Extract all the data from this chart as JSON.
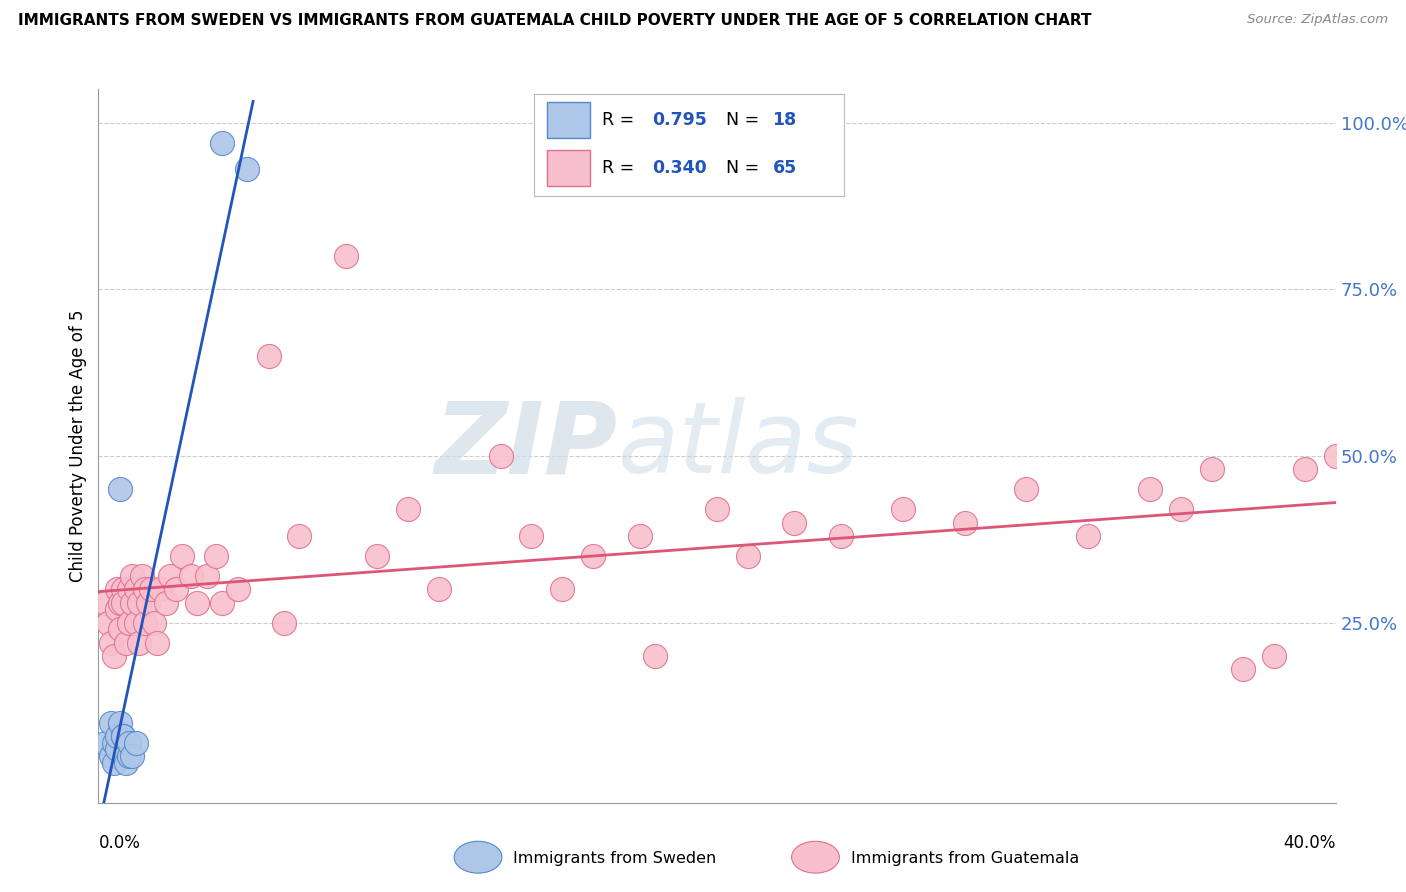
{
  "title": "IMMIGRANTS FROM SWEDEN VS IMMIGRANTS FROM GUATEMALA CHILD POVERTY UNDER THE AGE OF 5 CORRELATION CHART",
  "source": "Source: ZipAtlas.com",
  "ylabel": "Child Poverty Under the Age of 5",
  "y_ticks": [
    0.0,
    0.25,
    0.5,
    0.75,
    1.0
  ],
  "y_tick_labels": [
    "",
    "25.0%",
    "50.0%",
    "75.0%",
    "100.0%"
  ],
  "xlim": [
    0.0,
    0.4
  ],
  "ylim": [
    -0.02,
    1.05
  ],
  "sweden_color": "#aec6e8",
  "sweden_edge_color": "#5588cc",
  "guatemala_color": "#f8c0cc",
  "guatemala_edge_color": "#e07090",
  "sweden_line_color": "#2255bb",
  "guatemala_line_color": "#dd5577",
  "sweden_R": 0.795,
  "sweden_N": 18,
  "guatemala_R": 0.34,
  "guatemala_N": 65,
  "sweden_x": [
    0.002,
    0.004,
    0.004,
    0.005,
    0.005,
    0.006,
    0.006,
    0.007,
    0.007,
    0.008,
    0.008,
    0.009,
    0.01,
    0.01,
    0.011,
    0.012,
    0.04,
    0.048
  ],
  "sweden_y": [
    0.07,
    0.05,
    0.1,
    0.04,
    0.07,
    0.06,
    0.08,
    0.1,
    0.45,
    0.08,
    0.08,
    0.04,
    0.05,
    0.07,
    0.05,
    0.07,
    0.97,
    0.93
  ],
  "guatemala_x": [
    0.002,
    0.003,
    0.004,
    0.005,
    0.006,
    0.006,
    0.007,
    0.007,
    0.008,
    0.008,
    0.009,
    0.01,
    0.01,
    0.011,
    0.011,
    0.012,
    0.012,
    0.013,
    0.013,
    0.014,
    0.015,
    0.015,
    0.016,
    0.017,
    0.018,
    0.019,
    0.02,
    0.022,
    0.023,
    0.025,
    0.027,
    0.03,
    0.032,
    0.035,
    0.038,
    0.04,
    0.045,
    0.055,
    0.06,
    0.065,
    0.08,
    0.09,
    0.1,
    0.11,
    0.13,
    0.14,
    0.15,
    0.16,
    0.175,
    0.18,
    0.2,
    0.21,
    0.225,
    0.24,
    0.26,
    0.28,
    0.3,
    0.32,
    0.34,
    0.35,
    0.36,
    0.37,
    0.38,
    0.39,
    0.4
  ],
  "guatemala_y": [
    0.28,
    0.25,
    0.22,
    0.2,
    0.27,
    0.3,
    0.24,
    0.28,
    0.3,
    0.28,
    0.22,
    0.25,
    0.3,
    0.28,
    0.32,
    0.25,
    0.3,
    0.28,
    0.22,
    0.32,
    0.25,
    0.3,
    0.28,
    0.3,
    0.25,
    0.22,
    0.3,
    0.28,
    0.32,
    0.3,
    0.35,
    0.32,
    0.28,
    0.32,
    0.35,
    0.28,
    0.3,
    0.65,
    0.25,
    0.38,
    0.8,
    0.35,
    0.42,
    0.3,
    0.5,
    0.38,
    0.3,
    0.35,
    0.38,
    0.2,
    0.42,
    0.35,
    0.4,
    0.38,
    0.42,
    0.4,
    0.45,
    0.38,
    0.45,
    0.42,
    0.48,
    0.18,
    0.2,
    0.48,
    0.5
  ],
  "background_color": "#ffffff",
  "grid_color": "#cccccc",
  "watermark_zip": "ZIP",
  "watermark_atlas": "atlas",
  "legend_label_sweden": "Immigrants from Sweden",
  "legend_label_guatemala": "Immigrants from Guatemala"
}
